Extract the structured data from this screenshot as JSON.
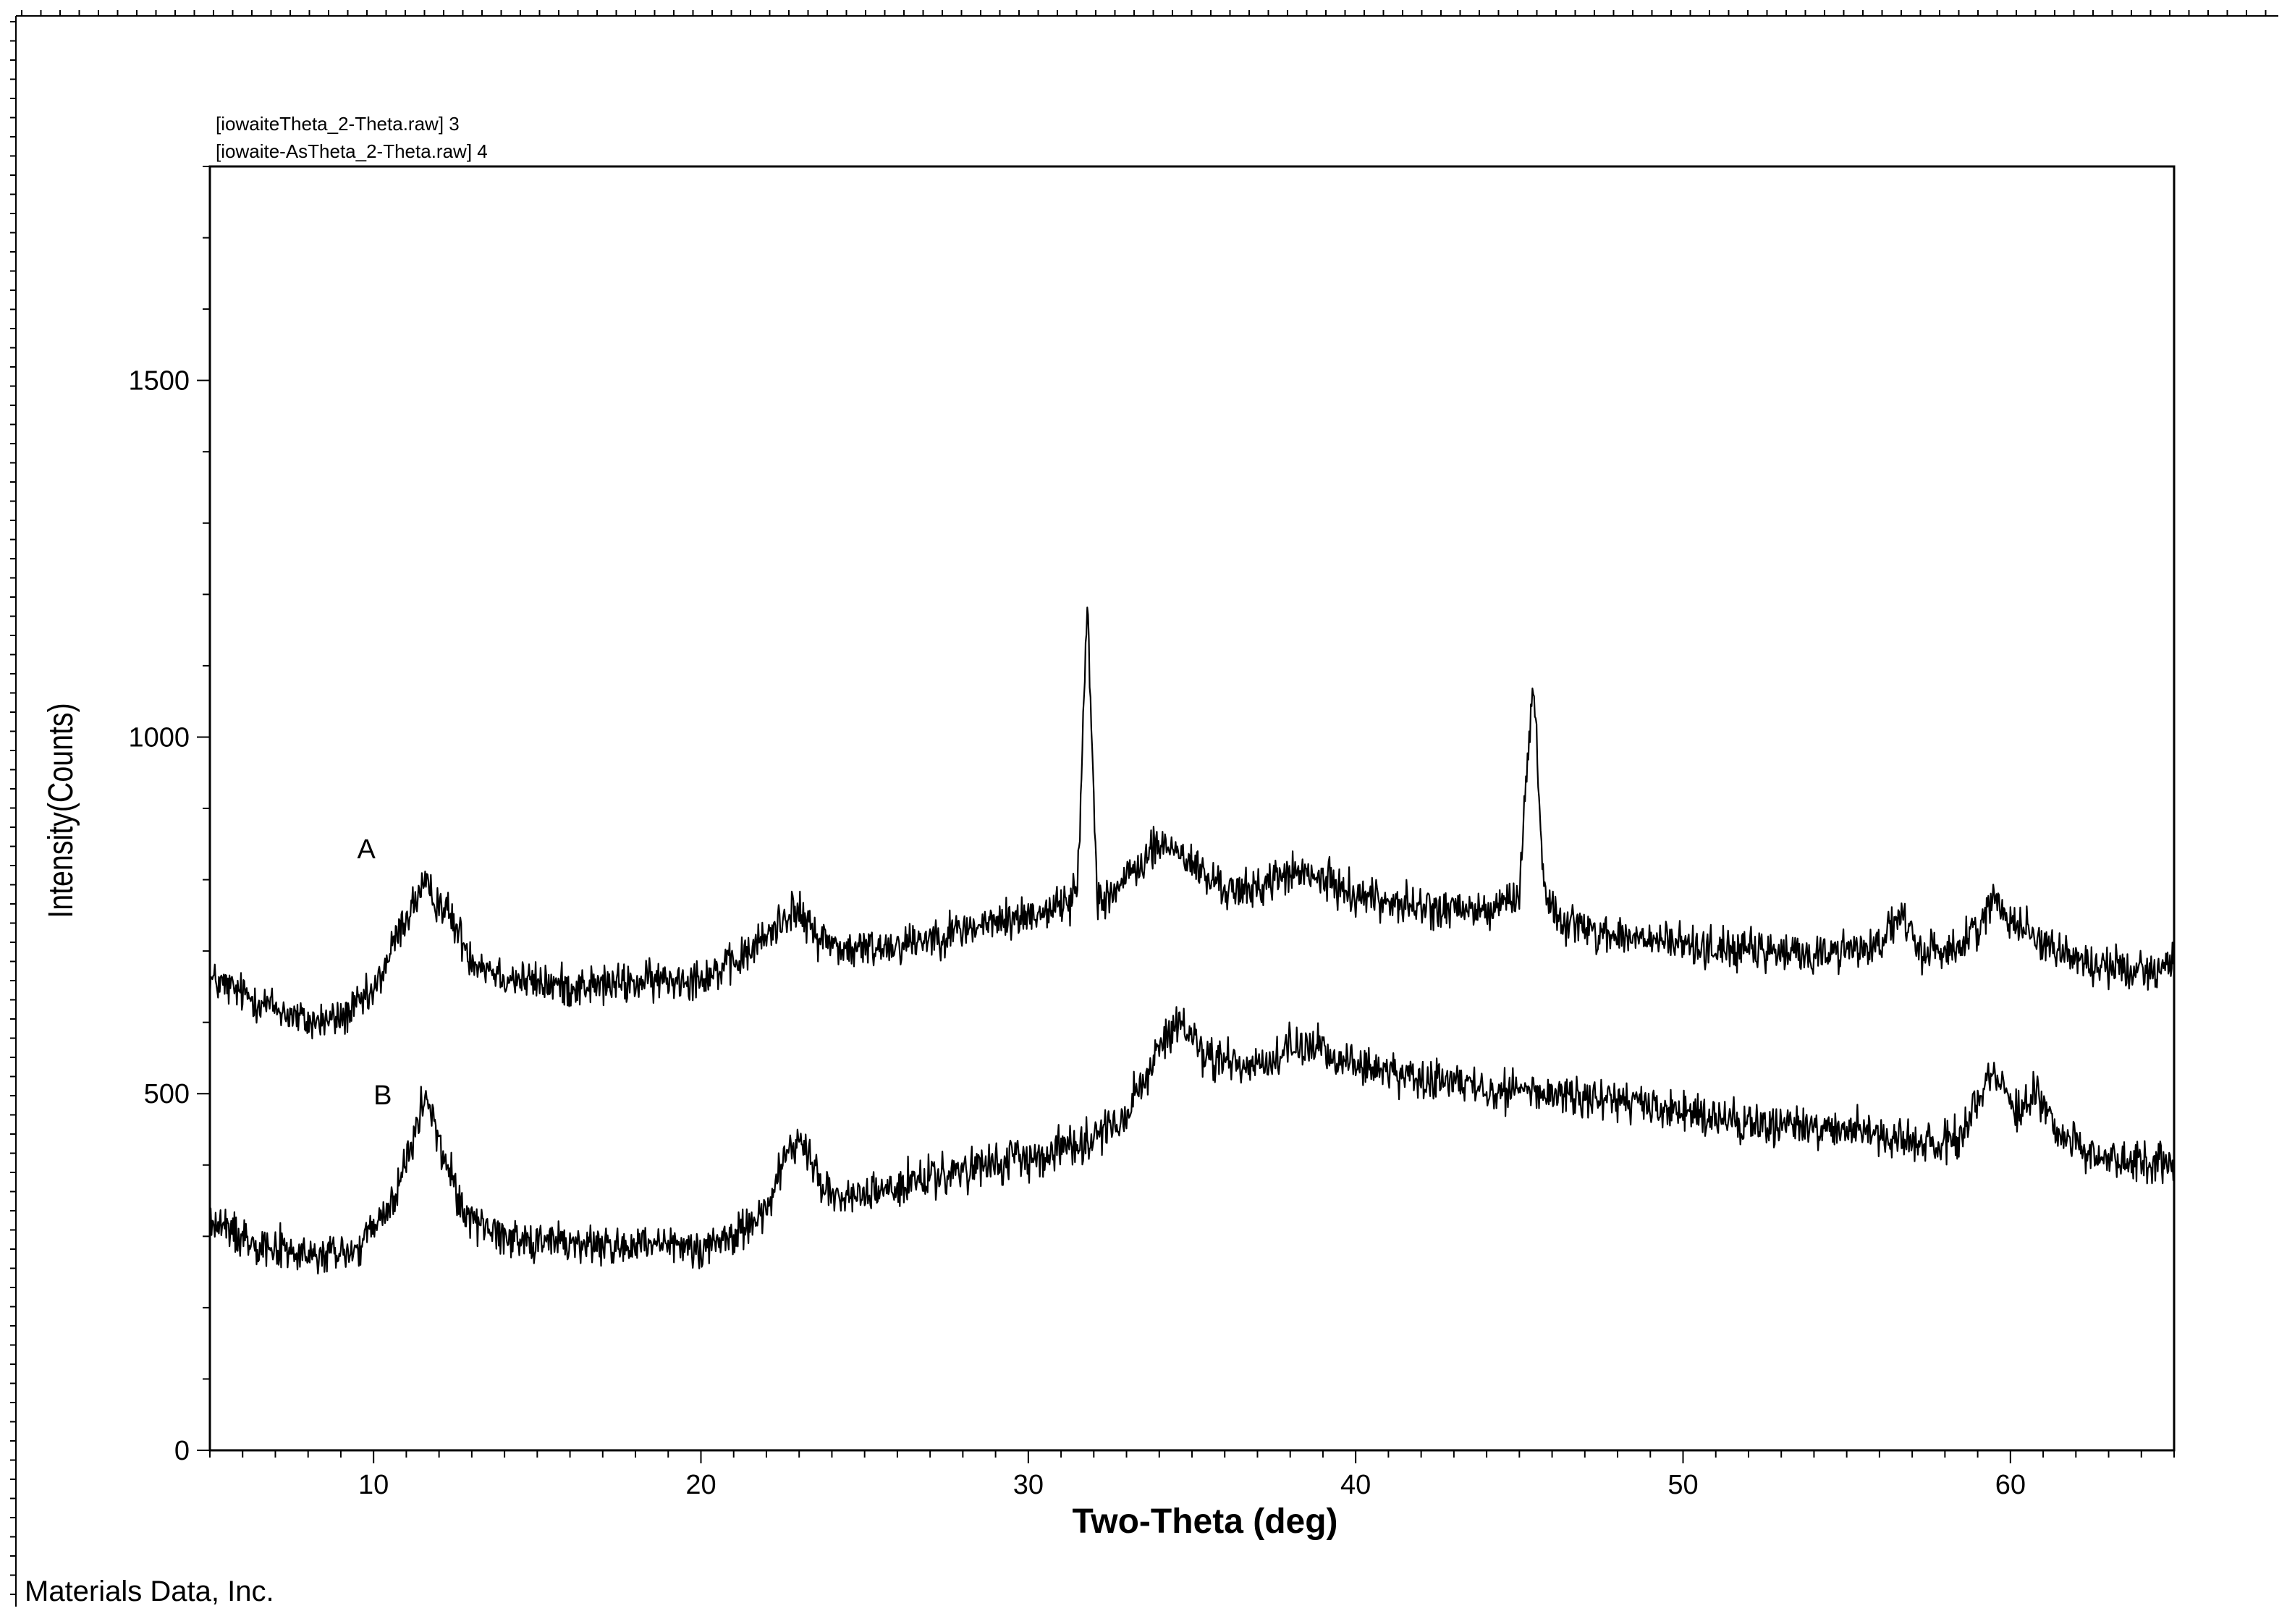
{
  "chart_data": {
    "type": "line",
    "title": "",
    "xlabel": "Two-Theta (deg)",
    "ylabel": "Intensity(Counts)",
    "xlim": [
      5,
      65
    ],
    "ylim": [
      0,
      1800
    ],
    "x_ticks": [
      10,
      20,
      30,
      40,
      50,
      60
    ],
    "y_ticks": [
      0,
      500,
      1000,
      1500
    ],
    "grid": false,
    "legend": [
      "[iowaiteTheta_2-Theta.raw] 3",
      "[iowaite-AsTheta_2-Theta.raw] 4"
    ],
    "legend_position": "top-left",
    "footer": "Materials Data, Inc.",
    "series": [
      {
        "name": "A",
        "noise_amplitude": 25,
        "x": [
          5,
          7,
          8,
          9,
          10,
          10.8,
          11.5,
          12.2,
          13,
          14,
          15,
          16,
          18,
          20,
          21,
          22,
          22.8,
          23.6,
          24.5,
          26,
          28,
          30,
          31,
          31.5,
          31.8,
          32.1,
          32.5,
          33,
          34,
          34.6,
          35.5,
          36.5,
          38,
          39,
          40,
          42,
          44,
          45,
          45.4,
          45.8,
          46.5,
          48,
          50,
          52,
          54,
          56,
          56.6,
          57.2,
          58.5,
          59.5,
          60.5,
          61.5,
          62.5,
          64,
          65
        ],
        "y": [
          660,
          620,
          600,
          605,
          640,
          730,
          790,
          760,
          690,
          665,
          655,
          650,
          655,
          665,
          680,
          720,
          760,
          720,
          700,
          710,
          730,
          750,
          765,
          780,
          1190,
          780,
          780,
          800,
          850,
          840,
          800,
          780,
          810,
          800,
          780,
          760,
          755,
          780,
          1080,
          770,
          740,
          720,
          710,
          700,
          695,
          710,
          750,
          700,
          705,
          770,
          730,
          700,
          680,
          675,
          680
        ]
      },
      {
        "name": "B",
        "noise_amplitude": 25,
        "x": [
          5,
          6,
          8,
          9.5,
          10.5,
          11.2,
          11.6,
          12,
          12.8,
          14,
          16,
          18,
          20,
          21,
          22,
          22.6,
          23,
          23.6,
          24.2,
          26,
          28,
          30,
          32,
          33,
          34,
          34.5,
          35.5,
          37,
          38.5,
          40,
          42,
          45,
          48,
          50,
          52,
          55,
          57,
          58.5,
          59.5,
          60.2,
          60.8,
          61.6,
          62.5,
          64,
          65
        ],
        "y": [
          320,
          300,
          270,
          280,
          340,
          430,
          500,
          430,
          330,
          300,
          290,
          285,
          285,
          300,
          340,
          410,
          440,
          380,
          350,
          370,
          390,
          410,
          440,
          470,
          560,
          600,
          550,
          540,
          570,
          540,
          520,
          505,
          490,
          470,
          460,
          450,
          430,
          440,
          540,
          470,
          505,
          440,
          415,
          405,
          400
        ]
      }
    ]
  }
}
